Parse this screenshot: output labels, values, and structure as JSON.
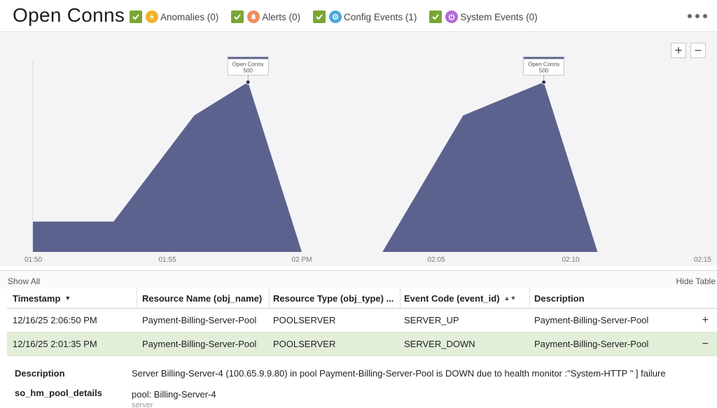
{
  "header": {
    "title": "Open Conns",
    "filters": [
      {
        "label": "Anomalies (0)",
        "icon": "lightning-icon",
        "color": "#f0b429"
      },
      {
        "label": "Alerts (0)",
        "icon": "bell-icon",
        "color": "#f08a5d"
      },
      {
        "label": "Config Events (1)",
        "icon": "gear-icon",
        "color": "#4aa8d8"
      },
      {
        "label": "System Events (0)",
        "icon": "power-icon",
        "color": "#b36ad6"
      }
    ],
    "checkbox_color": "#7aa635"
  },
  "chart_data": {
    "type": "area",
    "x": [
      "01:50",
      "01:53",
      "01:56",
      "01:58",
      "02:00",
      "02:03",
      "02:06",
      "02:09",
      "02:11",
      "02:15"
    ],
    "values": [
      100,
      100,
      450,
      560,
      0,
      0,
      450,
      560,
      0,
      0
    ],
    "tick_labels": [
      "01:50",
      "01:55",
      "02 PM",
      "02:05",
      "02:10",
      "02:15"
    ],
    "tooltips": [
      {
        "title": "Open Conns",
        "value": "500"
      },
      {
        "title": "Open Conns",
        "value": "500"
      }
    ],
    "fill_color": "#5c628e",
    "zoom_in": "+",
    "zoom_out": "−"
  },
  "table": {
    "show_all": "Show All",
    "hide_table": "Hide Table",
    "columns": [
      "Timestamp",
      "Resource Name (obj_name)",
      "Resource Type (obj_type) ...",
      "Event Code (event_id)",
      "Description"
    ],
    "rows": [
      {
        "timestamp": "12/16/25 2:06:50 PM",
        "resource_name": "Payment-Billing-Server-Pool",
        "resource_type": "POOLSERVER",
        "event_code": "SERVER_UP",
        "description": "Payment-Billing-Server-Pool",
        "action": "+"
      },
      {
        "timestamp": "12/16/25 2:01:35 PM",
        "resource_name": "Payment-Billing-Server-Pool",
        "resource_type": "POOLSERVER",
        "event_code": "SERVER_DOWN",
        "description": "Payment-Billing-Server-Pool",
        "action": "−"
      }
    ],
    "detail": {
      "description_label": "Description",
      "description_value": "Server Billing-Server-4 (100.65.9.9.80) in pool Payment-Billing-Server-Pool is DOWN due to health monitor :\"System-HTTP \" ] failure",
      "details_label": "so_hm_pool_details",
      "details_value": "pool: Billing-Server-4",
      "details_more": "server"
    }
  }
}
